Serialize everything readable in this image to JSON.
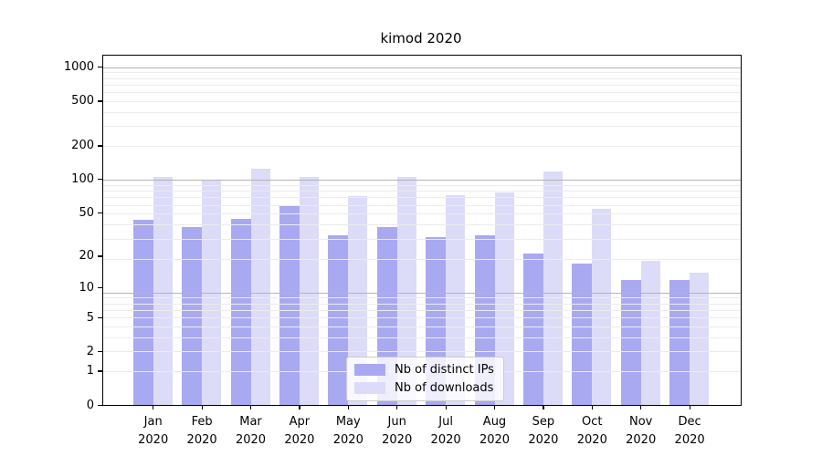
{
  "chart_data": {
    "type": "bar",
    "title": "kimod 2020",
    "xlabel": "",
    "ylabel": "",
    "categories": [
      "Jan",
      "Feb",
      "Mar",
      "Apr",
      "May",
      "Jun",
      "Jul",
      "Aug",
      "Sep",
      "Oct",
      "Nov",
      "Dec"
    ],
    "year_label": "2020",
    "series": [
      {
        "name": "Nb of distinct IPs",
        "color": "#a9a9f2",
        "values": [
          43,
          37,
          44,
          58,
          31,
          37,
          30,
          31,
          21,
          17,
          12,
          12
        ]
      },
      {
        "name": "Nb of downloads",
        "color": "#dcdcf8",
        "values": [
          106,
          99,
          125,
          106,
          71,
          106,
          72,
          76,
          118,
          54,
          18,
          14
        ]
      }
    ],
    "yticks": [
      0,
      1,
      2,
      5,
      10,
      20,
      50,
      100,
      200,
      500,
      1000
    ],
    "ylim": [
      0,
      1150
    ],
    "yscale": "log10(value+1)",
    "grid": "horizontal, minor light gray + major gray at 10/100/1000",
    "legend_position": "lower center",
    "colors": {
      "axis": "#000000",
      "grid_major": "#b4b4b4",
      "grid_minor": "#ececec",
      "legend_border": "#cccccc",
      "background": "#ffffff"
    }
  }
}
